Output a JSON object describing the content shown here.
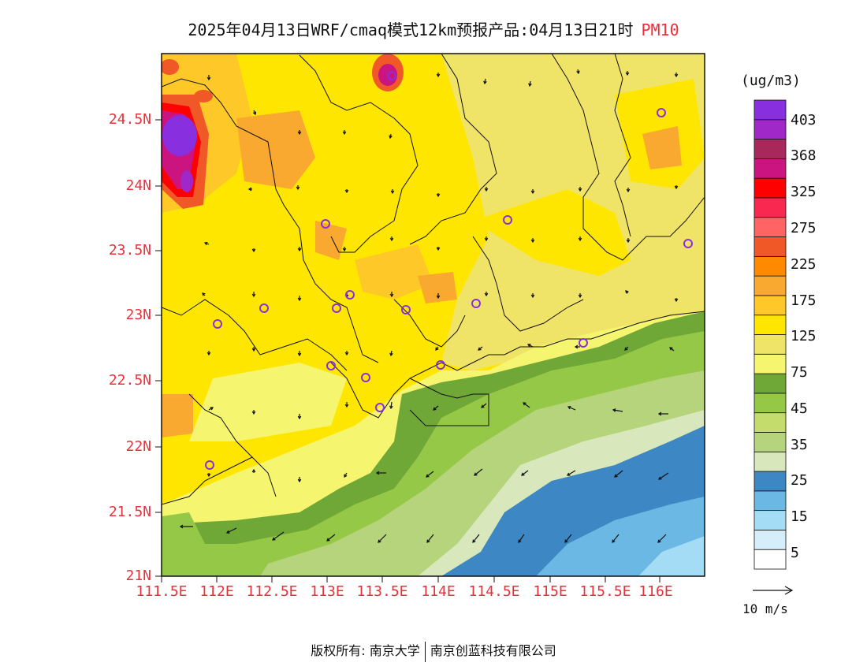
{
  "title": "2025年04月13日WRF/cmaq模式12km预报产品:04月13日21时",
  "variable": "PM10",
  "unit": "(ug/m3)",
  "lat_labels": [
    "24.5N",
    "24N",
    "23.5N",
    "23N",
    "22.5N",
    "22N",
    "21.5N",
    "21N"
  ],
  "lon_labels": [
    "111.5E",
    "112E",
    "112.5E",
    "113E",
    "113.5E",
    "114E",
    "114.5E",
    "115E",
    "115.5E",
    "116E"
  ],
  "legend": {
    "labels": [
      "403",
      "368",
      "325",
      "275",
      "225",
      "175",
      "125",
      "75",
      "45",
      "35",
      "25",
      "15",
      "5"
    ],
    "colors": [
      "#ffffff",
      "#d6eefa",
      "#a4dcf5",
      "#6cb8e4",
      "#3d88c4",
      "#d9e8bc",
      "#b5d47c",
      "#c4dc6c",
      "#96c848",
      "#70a838",
      "#f5f570",
      "#f0e468",
      "#ffe600",
      "#fec828",
      "#f9a830",
      "#ff8a00",
      "#f05828",
      "#ff6464",
      "#f82850",
      "#ff0000",
      "#cc1480",
      "#a8285c",
      "#a028c8",
      "#8830e0"
    ]
  },
  "wind_reference": "10 m/s",
  "colors": {
    "label_red": "#e8313a"
  },
  "footer": {
    "left": "版权所有: 南京大学",
    "right": "南京创蓝科技有限公司"
  }
}
